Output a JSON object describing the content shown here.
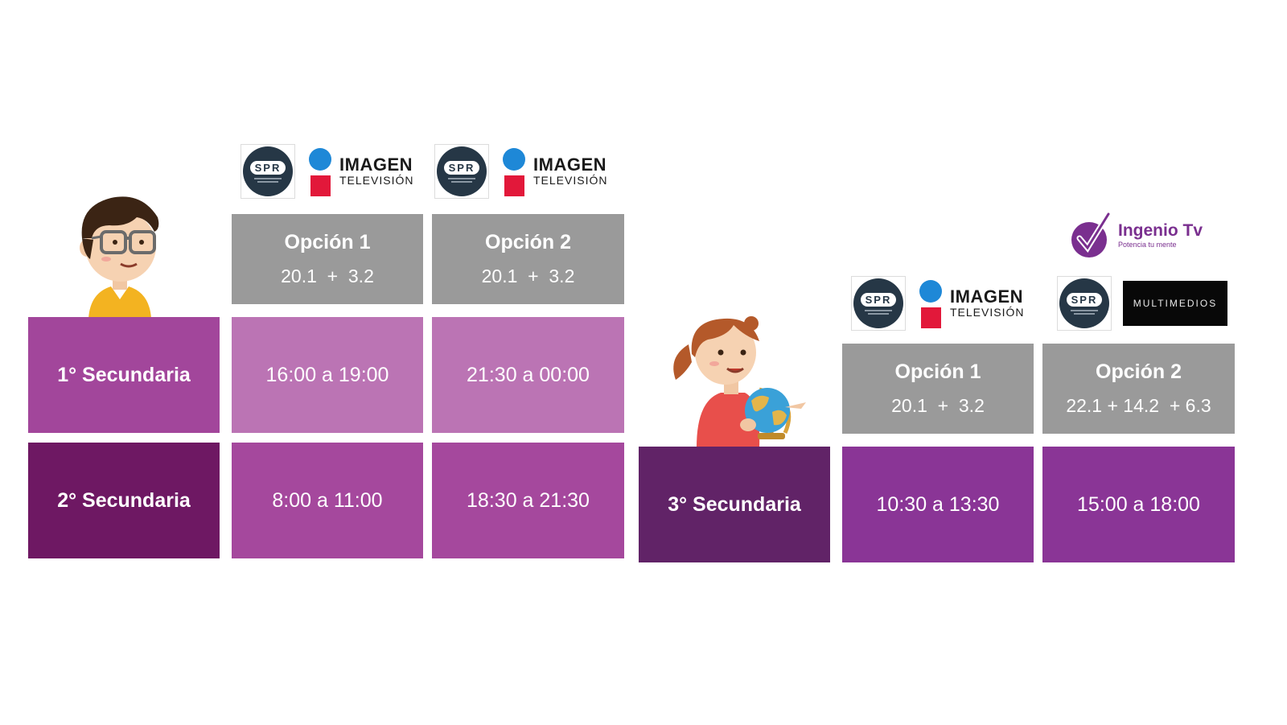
{
  "logos": {
    "spr": "SPR",
    "imagen_line1": "IMAGEN",
    "imagen_line2": "TELEVISIÓN",
    "multimedios": "MULTIMEDIOS",
    "ingenio_name": "Ingenio Tv",
    "ingenio_tagline": "Potencia tu mente"
  },
  "left_table": {
    "options": [
      {
        "title": "Opción 1",
        "channels": "20.1  +  3.2"
      },
      {
        "title": "Opción 2",
        "channels": "20.1  +  3.2"
      }
    ],
    "rows": [
      {
        "level": "1° Secundaria",
        "times": [
          "16:00 a 19:00",
          "21:30 a 00:00"
        ]
      },
      {
        "level": "2° Secundaria",
        "times": [
          "8:00 a 11:00",
          "18:30 a 21:30"
        ]
      }
    ]
  },
  "right_table": {
    "options": [
      {
        "title": "Opción 1",
        "channels": "20.1  +  3.2"
      },
      {
        "title": "Opción 2",
        "channels": "22.1 + 14.2  + 6.3"
      }
    ],
    "rows": [
      {
        "level": "3° Secundaria",
        "times": [
          "10:30 a 13:30",
          "15:00 a 18:00"
        ]
      }
    ]
  },
  "colors": {
    "level1": "#a2469b",
    "light": "#bb74b4",
    "level2": "#6e1863",
    "mid": "#a5489d",
    "level3": "#612367",
    "violet": "#8a3596",
    "option_gray": "#9a9a9a"
  },
  "icons": [
    "boy-with-glasses-illustration",
    "girl-with-globe-illustration",
    "spr-logo",
    "imagen-logo",
    "multimedios-logo",
    "ingenio-checkmark-logo"
  ]
}
